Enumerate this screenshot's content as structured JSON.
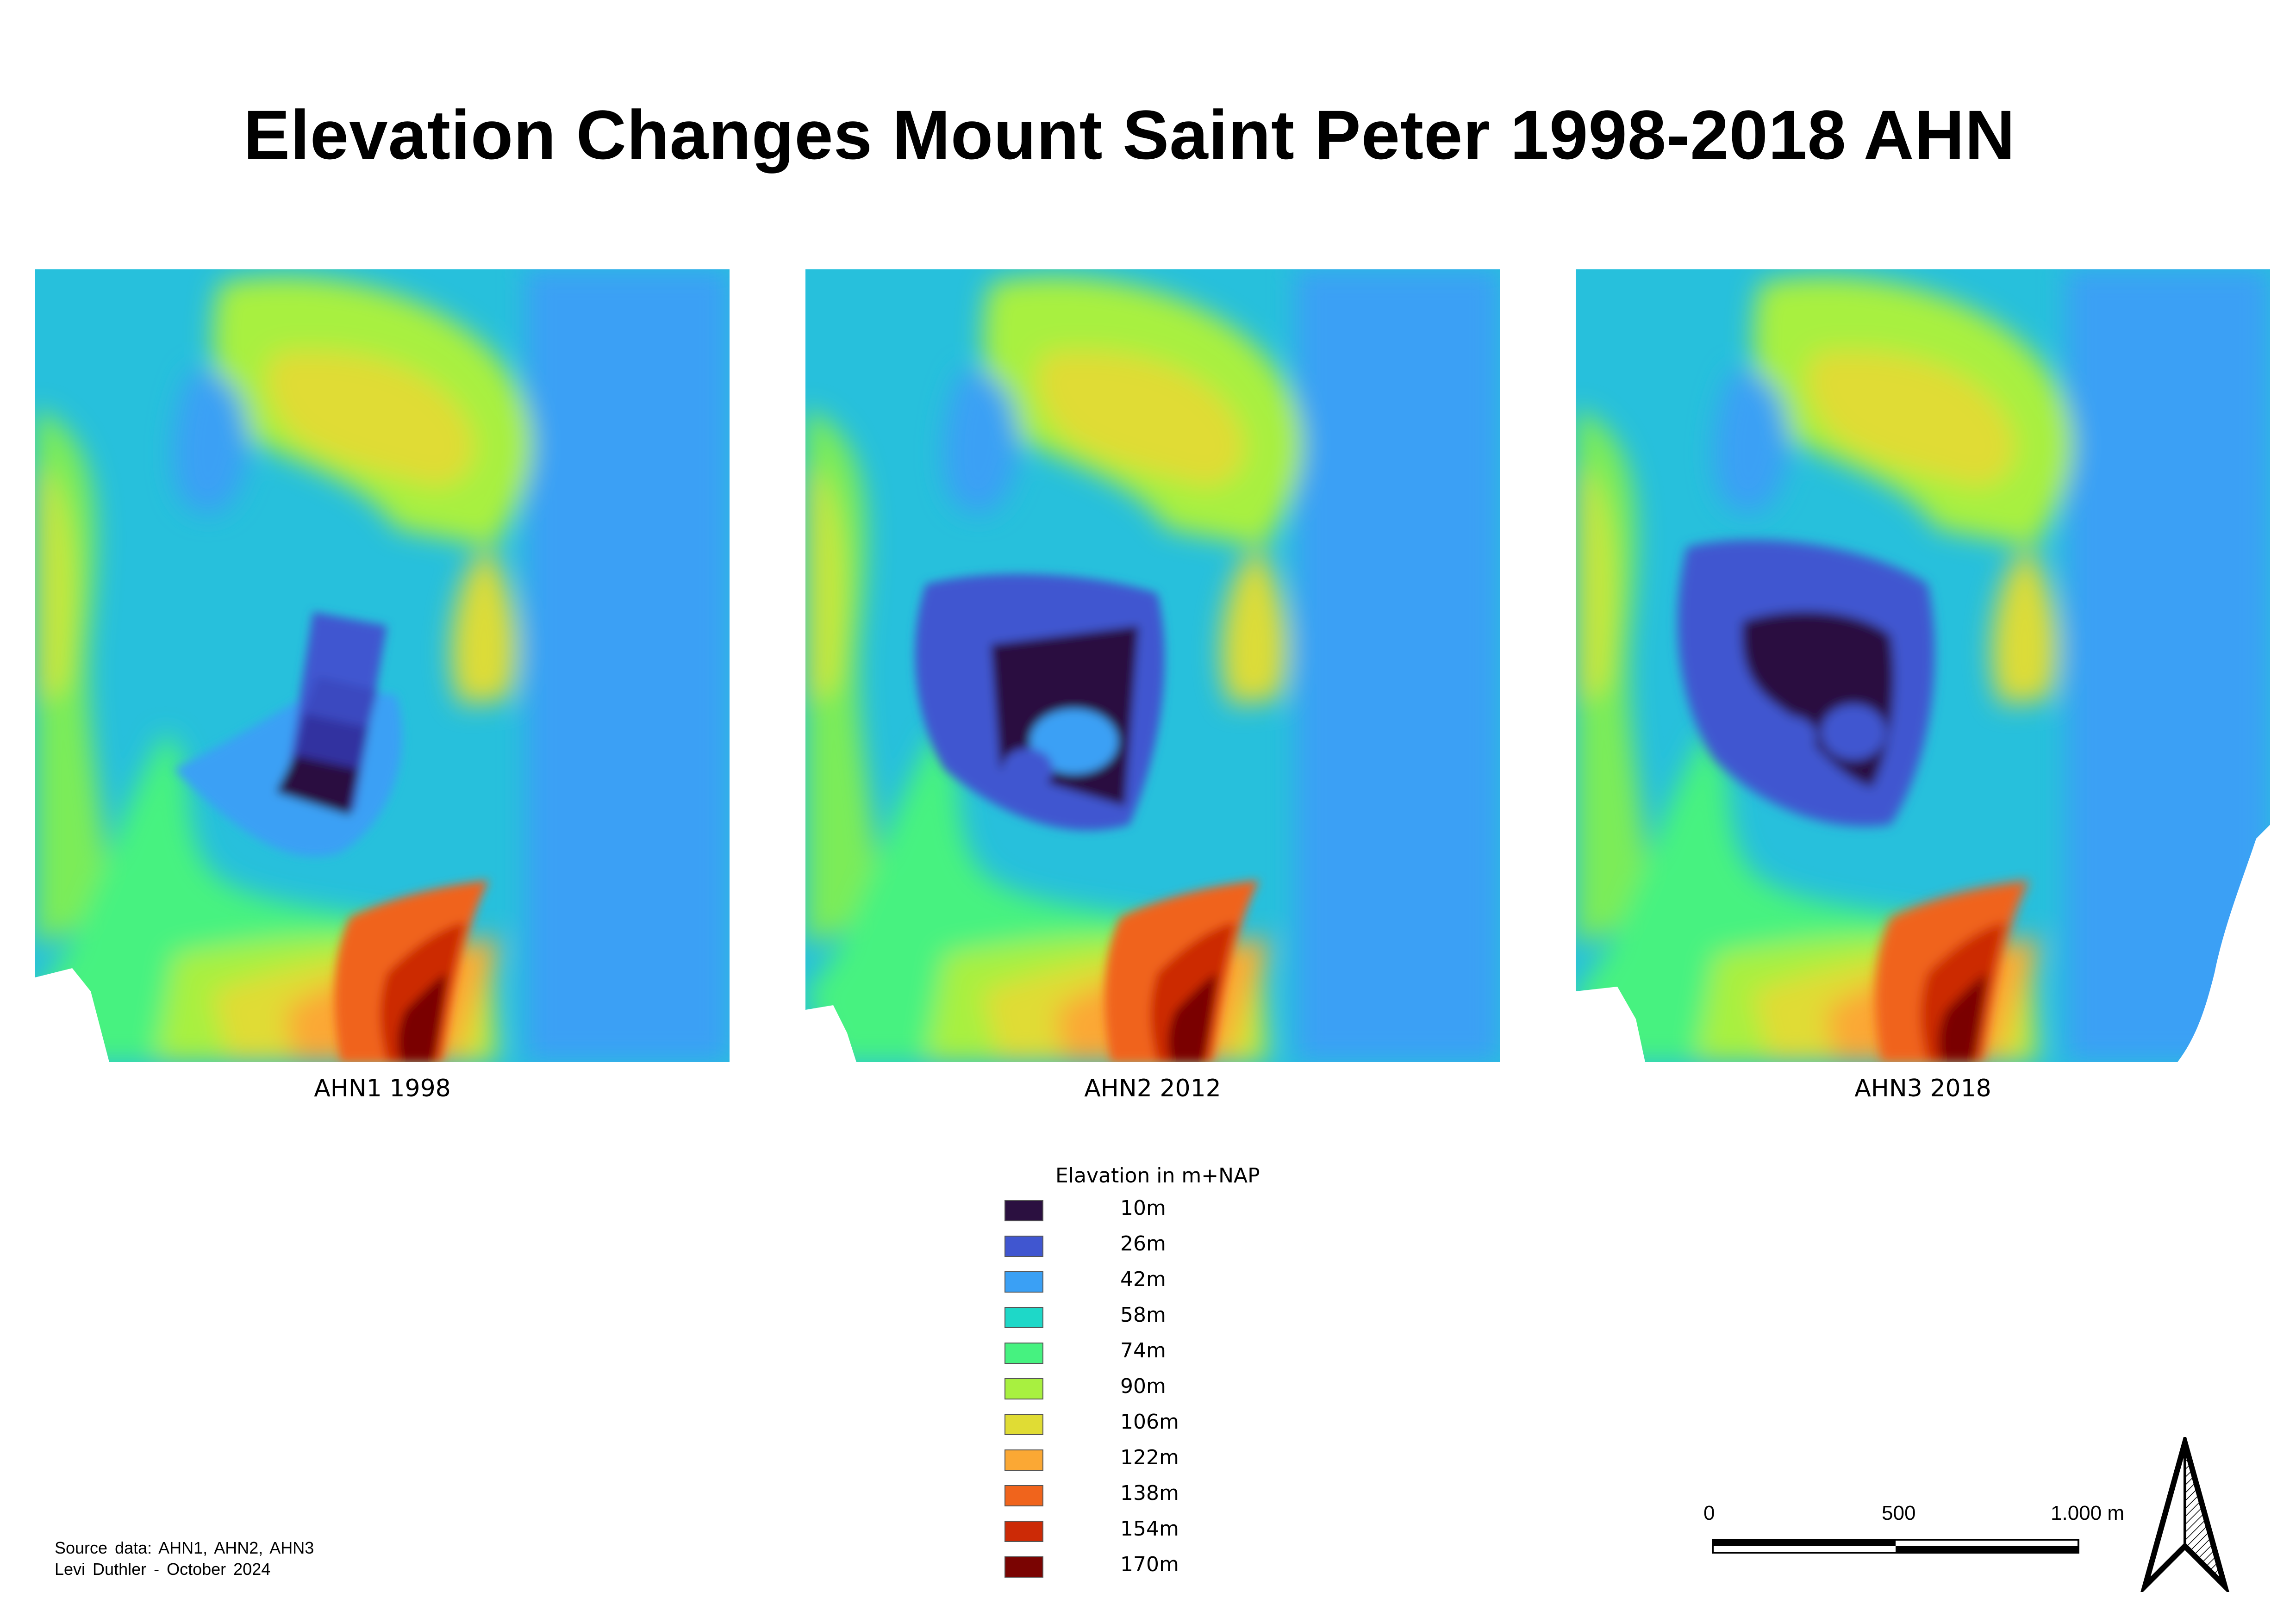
{
  "title": "Elevation Changes Mount Saint Peter 1998-2018 AHN",
  "panels": [
    {
      "caption": "AHN1 1998"
    },
    {
      "caption": "AHN2 2012"
    },
    {
      "caption": "AHN3 2018"
    }
  ],
  "legend": {
    "title": "Elavation in m+NAP",
    "entries": [
      {
        "label": "10m",
        "color": "#2b1040"
      },
      {
        "label": "26m",
        "color": "#4056d0"
      },
      {
        "label": "42m",
        "color": "#3aa0f5"
      },
      {
        "label": "58m",
        "color": "#1ed8c8"
      },
      {
        "label": "74m",
        "color": "#46f280"
      },
      {
        "label": "90m",
        "color": "#a8f040"
      },
      {
        "label": "106m",
        "color": "#e0dc34"
      },
      {
        "label": "122m",
        "color": "#fba834"
      },
      {
        "label": "138m",
        "color": "#f0641c"
      },
      {
        "label": "154m",
        "color": "#cc2a06"
      },
      {
        "label": "170m",
        "color": "#7a0402"
      }
    ]
  },
  "source": {
    "line1": "Source data: AHN1, AHN2, AHN3",
    "line2": "Levi Duthler - October 2024"
  },
  "scalebar": {
    "labels": [
      "0",
      "500",
      "1.000 m"
    ]
  },
  "north_arrow": {
    "icon": "north-arrow-icon"
  }
}
